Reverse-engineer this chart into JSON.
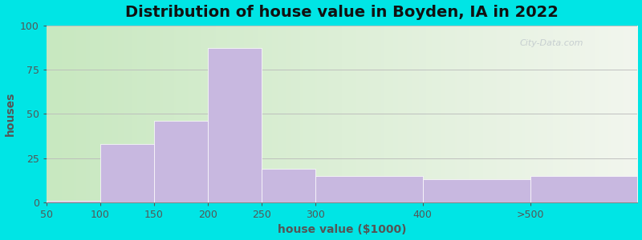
{
  "title": "Distribution of house value in Boyden, IA in 2022",
  "xlabel": "house value ($1000)",
  "ylabel": "houses",
  "bin_edges": [
    50,
    100,
    150,
    200,
    250,
    300,
    400,
    500,
    600
  ],
  "tick_positions": [
    50,
    100,
    150,
    200,
    250,
    300,
    400,
    500,
    600
  ],
  "tick_labels": [
    "50",
    "100",
    "150",
    "200",
    "250",
    "300",
    "400",
    ">500",
    ""
  ],
  "bar_values": [
    1,
    33,
    46,
    87,
    19,
    15,
    13,
    15
  ],
  "bar_color": "#c8b8e0",
  "bar_edgecolor": "#c8b8e0",
  "ylim": [
    0,
    100
  ],
  "xlim": [
    50,
    600
  ],
  "yticks": [
    0,
    25,
    50,
    75,
    100
  ],
  "background_outer": "#00e5e5",
  "background_inner_left_top": "#d8edd8",
  "background_inner_left_bottom": "#e8f5e0",
  "background_inner_right_top": "#f0f5ec",
  "background_inner_right_bottom": "#f5f8f0",
  "grid_color": "#bbbbbb",
  "title_fontsize": 14,
  "axis_label_fontsize": 10,
  "tick_fontsize": 9,
  "watermark_text": "City-Data.com",
  "watermark_color": "#c0c8cc"
}
